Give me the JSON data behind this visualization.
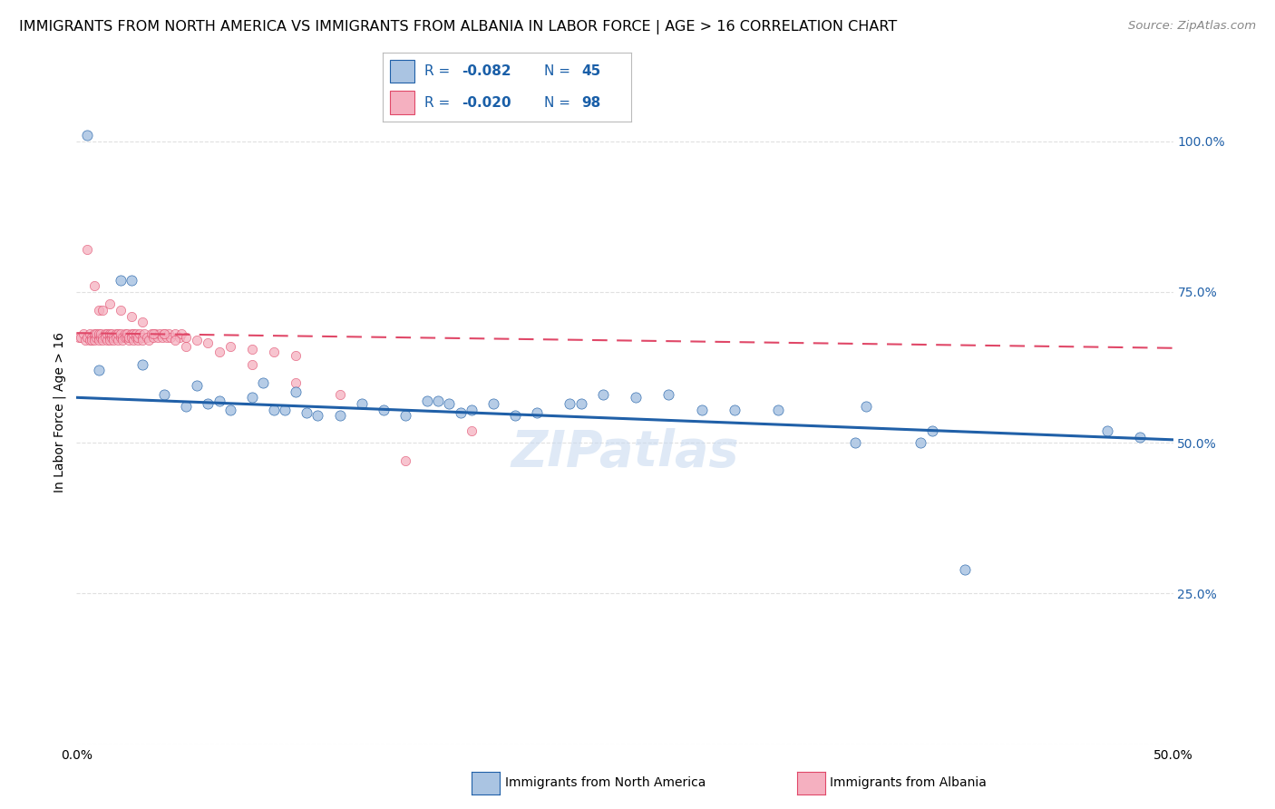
{
  "title": "IMMIGRANTS FROM NORTH AMERICA VS IMMIGRANTS FROM ALBANIA IN LABOR FORCE | AGE > 16 CORRELATION CHART",
  "source": "Source: ZipAtlas.com",
  "ylabel": "In Labor Force | Age > 16",
  "xlim": [
    0.0,
    0.5
  ],
  "ylim": [
    0.0,
    1.1
  ],
  "legend_blue_r": "-0.082",
  "legend_blue_n": "45",
  "legend_pink_r": "-0.020",
  "legend_pink_n": "98",
  "blue_color": "#aac4e2",
  "blue_line_color": "#2060a8",
  "pink_color": "#f5b0c0",
  "pink_line_color": "#e04868",
  "legend_text_color": "#1a5fa8",
  "watermark": "ZIPatlas",
  "blue_scatter_x": [
    0.005,
    0.01,
    0.02,
    0.025,
    0.03,
    0.04,
    0.05,
    0.055,
    0.06,
    0.065,
    0.07,
    0.08,
    0.085,
    0.09,
    0.095,
    0.1,
    0.105,
    0.11,
    0.12,
    0.13,
    0.14,
    0.15,
    0.16,
    0.165,
    0.17,
    0.175,
    0.18,
    0.19,
    0.2,
    0.21,
    0.225,
    0.23,
    0.24,
    0.255,
    0.27,
    0.285,
    0.3,
    0.32,
    0.355,
    0.36,
    0.385,
    0.39,
    0.405,
    0.47,
    0.485
  ],
  "blue_scatter_y": [
    1.01,
    0.62,
    0.77,
    0.77,
    0.63,
    0.58,
    0.56,
    0.595,
    0.565,
    0.57,
    0.555,
    0.575,
    0.6,
    0.555,
    0.555,
    0.585,
    0.55,
    0.545,
    0.545,
    0.565,
    0.555,
    0.545,
    0.57,
    0.57,
    0.565,
    0.55,
    0.555,
    0.565,
    0.545,
    0.55,
    0.565,
    0.565,
    0.58,
    0.575,
    0.58,
    0.555,
    0.555,
    0.555,
    0.5,
    0.56,
    0.5,
    0.52,
    0.29,
    0.52,
    0.51
  ],
  "pink_scatter_x_dense": [
    0.001,
    0.002,
    0.003,
    0.004,
    0.005,
    0.006,
    0.006,
    0.007,
    0.007,
    0.008,
    0.008,
    0.008,
    0.009,
    0.009,
    0.01,
    0.01,
    0.01,
    0.011,
    0.011,
    0.012,
    0.012,
    0.013,
    0.013,
    0.014,
    0.014,
    0.015,
    0.015,
    0.015,
    0.016,
    0.016,
    0.017,
    0.017,
    0.018,
    0.018,
    0.019,
    0.019,
    0.02,
    0.02,
    0.021,
    0.021,
    0.022,
    0.022,
    0.023,
    0.023,
    0.024,
    0.024,
    0.025,
    0.025,
    0.026,
    0.026,
    0.027,
    0.027,
    0.028,
    0.028,
    0.029,
    0.03,
    0.03,
    0.031,
    0.032,
    0.033,
    0.034,
    0.035,
    0.036,
    0.037,
    0.038,
    0.039,
    0.04,
    0.041,
    0.042,
    0.043,
    0.045,
    0.047,
    0.048,
    0.05,
    0.055,
    0.06,
    0.07,
    0.08,
    0.09,
    0.1
  ],
  "pink_scatter_y_dense": [
    0.675,
    0.675,
    0.68,
    0.67,
    0.675,
    0.67,
    0.68,
    0.675,
    0.67,
    0.675,
    0.68,
    0.67,
    0.675,
    0.68,
    0.675,
    0.67,
    0.68,
    0.675,
    0.68,
    0.675,
    0.67,
    0.68,
    0.675,
    0.67,
    0.68,
    0.675,
    0.68,
    0.67,
    0.675,
    0.68,
    0.675,
    0.67,
    0.68,
    0.675,
    0.67,
    0.68,
    0.675,
    0.68,
    0.675,
    0.67,
    0.68,
    0.675,
    0.675,
    0.68,
    0.67,
    0.675,
    0.68,
    0.675,
    0.67,
    0.68,
    0.675,
    0.68,
    0.67,
    0.675,
    0.68,
    0.675,
    0.67,
    0.68,
    0.675,
    0.67,
    0.68,
    0.675,
    0.68,
    0.675,
    0.68,
    0.675,
    0.68,
    0.675,
    0.68,
    0.675,
    0.68,
    0.675,
    0.68,
    0.675,
    0.67,
    0.665,
    0.66,
    0.655,
    0.65,
    0.645
  ],
  "pink_scatter_x_extra": [
    0.005,
    0.008,
    0.01,
    0.012,
    0.015,
    0.02,
    0.025,
    0.03,
    0.035,
    0.04,
    0.045,
    0.05,
    0.065,
    0.08,
    0.1,
    0.12,
    0.15,
    0.18
  ],
  "pink_scatter_y_extra": [
    0.82,
    0.76,
    0.72,
    0.72,
    0.73,
    0.72,
    0.71,
    0.7,
    0.68,
    0.68,
    0.67,
    0.66,
    0.65,
    0.63,
    0.6,
    0.58,
    0.47,
    0.52
  ],
  "blue_trend": [
    0.0,
    0.575,
    0.5,
    0.505
  ],
  "pink_trend": [
    0.0,
    0.682,
    0.5,
    0.657
  ],
  "background_color": "#ffffff",
  "grid_color": "#dddddd",
  "title_fontsize": 11.5,
  "source_fontsize": 9.5
}
